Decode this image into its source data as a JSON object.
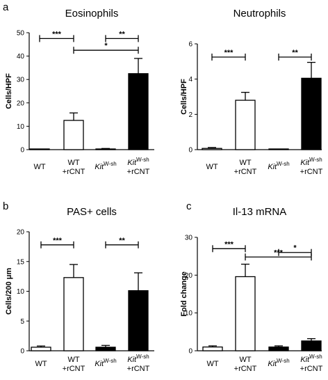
{
  "chart_data": [
    {
      "type": "bar",
      "panel_label": "a",
      "title": "Eosinophils",
      "ylabel": "Cells/HPF",
      "ylim": [
        0,
        50
      ],
      "yticks": [
        "0",
        "10",
        "20",
        "30",
        "40",
        "50"
      ],
      "categories": [
        {
          "main": "WT",
          "second": ""
        },
        {
          "main": "WT",
          "second": "+rCNT"
        },
        {
          "main": "Kit",
          "sup": "W-sh",
          "second": ""
        },
        {
          "main": "Kit",
          "sup": "W-sh",
          "second": "+rCNT"
        }
      ],
      "values": [
        0,
        12.5,
        0.3,
        32.5
      ],
      "errors": [
        0,
        3.2,
        0.2,
        6.5
      ],
      "fills": [
        "#ffffff",
        "#ffffff",
        "#000000",
        "#000000"
      ],
      "significance": [
        {
          "from": 0,
          "to": 1,
          "label": "***",
          "y": 47.5
        },
        {
          "from": 2,
          "to": 3,
          "label": "**",
          "y": 47.5
        },
        {
          "from": 1,
          "to": 3,
          "label": "*",
          "y": 42.5
        }
      ]
    },
    {
      "type": "bar",
      "panel_label": "",
      "title": "Neutrophils",
      "ylabel": "Cells/HPF",
      "ylim": [
        0,
        6
      ],
      "yticks": [
        "0",
        "2",
        "4",
        "6"
      ],
      "categories": [
        {
          "main": "WT",
          "second": ""
        },
        {
          "main": "WT",
          "second": "+rCNT"
        },
        {
          "main": "Kit",
          "sup": "W-sh",
          "second": ""
        },
        {
          "main": "Kit",
          "sup": "W-sh",
          "second": "+rCNT"
        }
      ],
      "values": [
        0.07,
        2.8,
        0.02,
        4.05
      ],
      "errors": [
        0.05,
        0.45,
        0.01,
        0.9
      ],
      "fills": [
        "#ffffff",
        "#ffffff",
        "#000000",
        "#000000"
      ],
      "significance": [
        {
          "from": 0,
          "to": 1,
          "label": "***",
          "y": 5.25
        },
        {
          "from": 2,
          "to": 3,
          "label": "**",
          "y": 5.25
        }
      ]
    },
    {
      "type": "bar",
      "panel_label": "b",
      "title": "PAS+ cells",
      "ylabel": "Cells/200  μm",
      "ylim": [
        0,
        20
      ],
      "yticks": [
        "0",
        "5",
        "10",
        "15",
        "20"
      ],
      "categories": [
        {
          "main": "WT",
          "second": ""
        },
        {
          "main": "WT",
          "second": "+rCNT"
        },
        {
          "main": "Kit",
          "sup": "W-sh",
          "second": ""
        },
        {
          "main": "Kit",
          "sup": "W-sh",
          "second": "+rCNT"
        }
      ],
      "values": [
        0.6,
        12.3,
        0.6,
        10.1
      ],
      "errors": [
        0.2,
        2.2,
        0.3,
        3.0
      ],
      "fills": [
        "#ffffff",
        "#ffffff",
        "#000000",
        "#000000"
      ],
      "significance": [
        {
          "from": 0,
          "to": 1,
          "label": "***",
          "y": 17.8
        },
        {
          "from": 2,
          "to": 3,
          "label": "**",
          "y": 17.8
        }
      ]
    },
    {
      "type": "bar",
      "panel_label": "c",
      "title": "Il-13 mRNA",
      "ylabel": "Fold change",
      "ylim": [
        0,
        30
      ],
      "yticks": [
        "0",
        "10",
        "20",
        "30"
      ],
      "categories": [
        {
          "main": "WT",
          "second": ""
        },
        {
          "main": "WT",
          "second": "+rCNT"
        },
        {
          "main": "Kit",
          "sup": "W-sh",
          "second": ""
        },
        {
          "main": "Kit",
          "sup": "W-sh",
          "second": "+rCNT"
        }
      ],
      "values": [
        1.0,
        19.6,
        1.0,
        2.6
      ],
      "errors": [
        0.3,
        3.3,
        0.3,
        0.6
      ],
      "fills": [
        "#ffffff",
        "#ffffff",
        "#000000",
        "#000000"
      ],
      "significance": [
        {
          "from": 0,
          "to": 1,
          "label": "***",
          "y": 27.0
        },
        {
          "from": 2,
          "to": 3,
          "label": "*",
          "y": 26.0
        },
        {
          "from": 1,
          "to": 3,
          "label": "***",
          "y": 24.8
        }
      ]
    }
  ]
}
